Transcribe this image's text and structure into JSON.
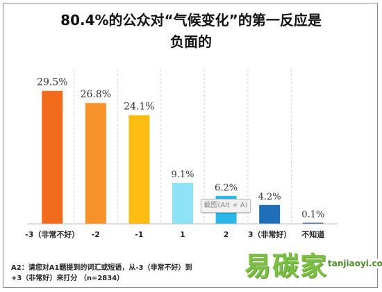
{
  "chart_data": {
    "type": "bar",
    "title_line1": "80.4%的公众对“气候变化”的第一反应是",
    "title_line2": "负面的",
    "categories": [
      "-3（非常不好）",
      "-2",
      "-1",
      "1",
      "2",
      "3（非常好）",
      "不知道"
    ],
    "values": [
      29.5,
      26.8,
      24.1,
      9.1,
      6.2,
      4.2,
      0.1
    ],
    "value_labels": [
      "29.5%",
      "26.8%",
      "24.1%",
      "9.1%",
      "6.2%",
      "4.2%",
      "0.1%"
    ],
    "colors": [
      "#f26a1b",
      "#f7922a",
      "#fdbd12",
      "#8fe3f7",
      "#29b8e8",
      "#1f6fb8",
      "#1f4a8a"
    ],
    "ylim": [
      0,
      33
    ],
    "grid": false,
    "legend": "none"
  },
  "footnote": {
    "line1": "A2：请您对A1题提到的词汇或短语，从-3（非常不好）到",
    "line2": "+3（非常好）来打分 （n=2834）"
  },
  "watermark": {
    "cn": "易碳家",
    "en": "tanjiaoyi.com"
  },
  "tooltip": {
    "text": "截图(Alt + A)"
  }
}
